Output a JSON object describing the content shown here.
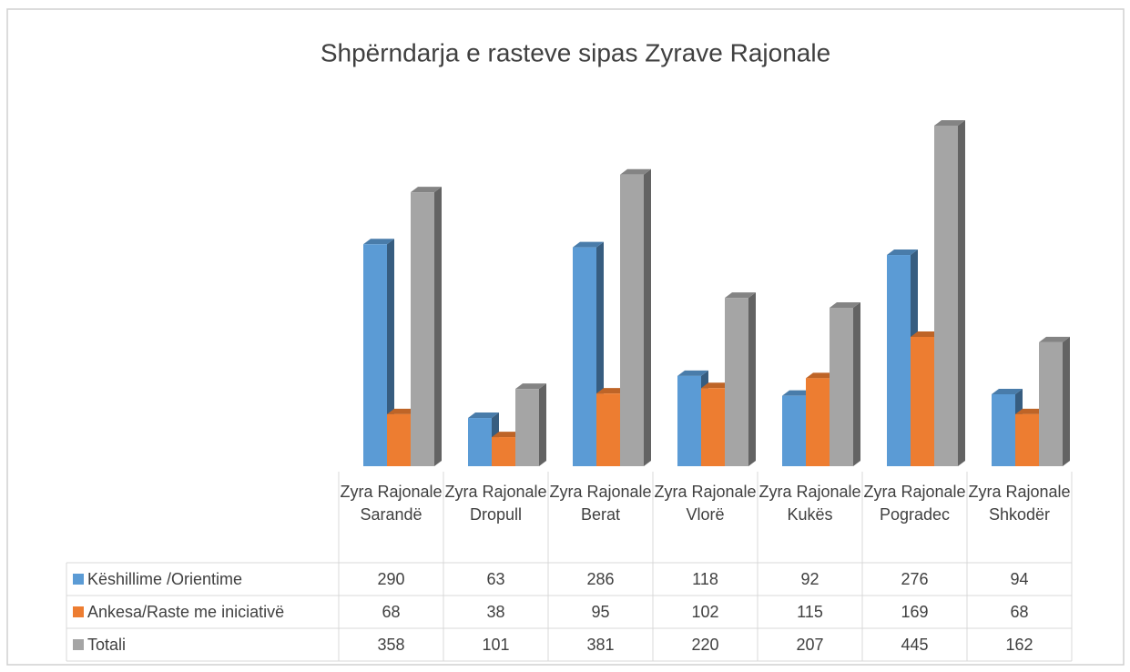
{
  "chart_data": {
    "type": "bar3d",
    "title": "Shpërndarja e rasteve sipas Zyrave Rajonale",
    "categories": [
      "Zyra Rajonale Sarandë",
      "Zyra Rajonale Dropull",
      "Zyra Rajonale Berat",
      "Zyra Rajonale Vlorë",
      "Zyra Rajonale Kukës",
      "Zyra Rajonale Pogradec",
      "Zyra Rajonale Shkodër"
    ],
    "series": [
      {
        "name": "Këshillime /Orientime",
        "color": "#5b9bd5",
        "values": [
          290,
          63,
          286,
          118,
          92,
          276,
          94
        ]
      },
      {
        "name": "Ankesa/Raste me iniciativë",
        "color": "#ed7d31",
        "values": [
          68,
          38,
          95,
          102,
          115,
          169,
          68
        ]
      },
      {
        "name": "Totali",
        "color": "#a5a5a5",
        "values": [
          358,
          101,
          381,
          220,
          207,
          445,
          162
        ]
      }
    ],
    "data_table": true
  }
}
